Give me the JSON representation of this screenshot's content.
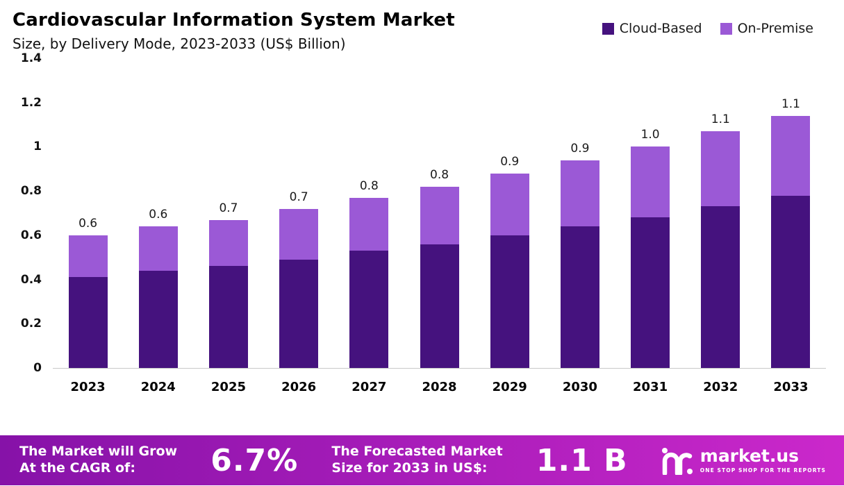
{
  "chart_data": {
    "type": "bar",
    "stacked": true,
    "title": "Cardiovascular Information System Market",
    "subtitle": "Size, by Delivery Mode, 2023-2033 (US$ Billion)",
    "categories": [
      "2023",
      "2024",
      "2025",
      "2026",
      "2027",
      "2028",
      "2029",
      "2030",
      "2031",
      "2032",
      "2033"
    ],
    "series": [
      {
        "name": "Cloud-Based",
        "color": "#45127e",
        "values": [
          0.41,
          0.44,
          0.46,
          0.49,
          0.53,
          0.56,
          0.6,
          0.64,
          0.68,
          0.73,
          0.78
        ]
      },
      {
        "name": "On-Premise",
        "color": "#9b59d6",
        "values": [
          0.19,
          0.2,
          0.21,
          0.23,
          0.24,
          0.26,
          0.28,
          0.3,
          0.32,
          0.34,
          0.36
        ]
      }
    ],
    "totals_labels": [
      "0.6",
      "0.6",
      "0.7",
      "0.7",
      "0.8",
      "0.8",
      "0.9",
      "0.9",
      "1.0",
      "1.1",
      "1.1"
    ],
    "ylim": [
      0,
      1.4
    ],
    "yticks": [
      "0",
      "0.2",
      "0.4",
      "0.6",
      "0.8",
      "1",
      "1.2",
      "1.4"
    ],
    "grid": false,
    "legend_position": "top-right",
    "xlabel": "",
    "ylabel": ""
  },
  "footer": {
    "cagr_label": "The Market will Grow\nAt the CAGR of:",
    "cagr_value": "6.7%",
    "forecast_label": "The Forecasted Market\nSize for 2033 in US$:",
    "forecast_value": "1.1 B",
    "brand": "market.us",
    "brand_tagline": "ONE STOP SHOP FOR THE REPORTS"
  },
  "colors": {
    "cloud_based": "#45127e",
    "on_premise": "#9b59d6",
    "footer_gradient_left": "#8612a8",
    "footer_gradient_right": "#cb28cb",
    "axis_line": "#c9c9c9",
    "text": "#111111"
  }
}
